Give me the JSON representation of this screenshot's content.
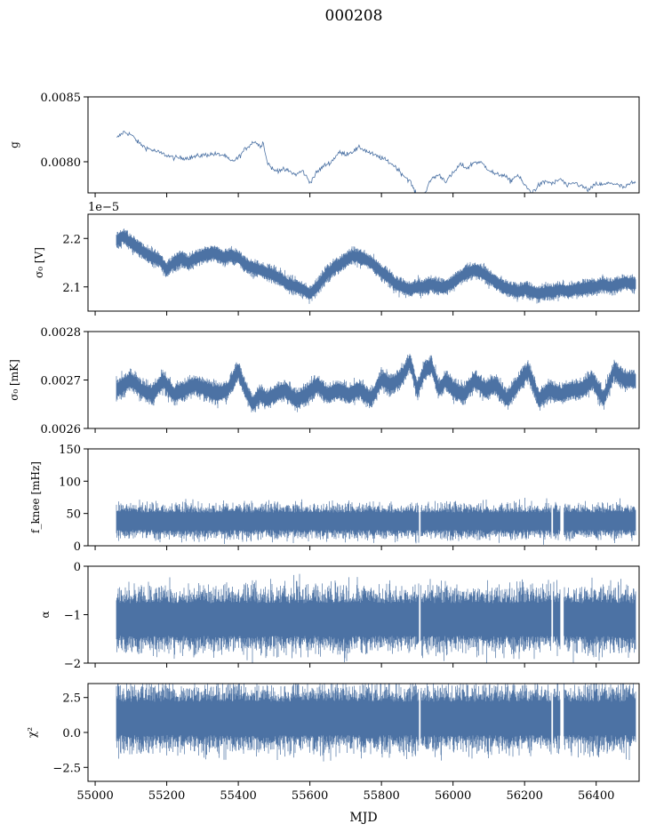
{
  "figure": {
    "title": "000208",
    "xlabel": "MJD",
    "x_tick_labels": [
      "55000",
      "55200",
      "55400",
      "55600",
      "55800",
      "56000",
      "56200",
      "56400"
    ],
    "series_color": "#4c72a4"
  },
  "chart_data": [
    {
      "type": "line",
      "title": "000208",
      "ylabel": "g",
      "xlabel": "",
      "xlim": [
        54980,
        56520
      ],
      "ylim": [
        0.00776,
        0.0085
      ],
      "yticks": [
        0.008,
        0.0085
      ],
      "ytick_labels": [
        "0.0080",
        "0.0085"
      ],
      "offset_text": "",
      "x_range": [
        55060,
        56510
      ],
      "series": [
        {
          "x": [
            55060,
            55080,
            55100,
            55120,
            55140,
            55180,
            55220,
            55260,
            55300,
            55330,
            55360,
            55380,
            55400,
            55420,
            55445,
            55460,
            55470,
            55480,
            55500,
            55520,
            55540,
            55560,
            55580,
            55600,
            55620,
            55640,
            55660,
            55680,
            55700,
            55720,
            55740,
            55760,
            55780,
            55800,
            55820,
            55840,
            55860,
            55880,
            55900,
            55920,
            55940,
            55960,
            55980,
            56000,
            56020,
            56040,
            56060,
            56080,
            56100,
            56120,
            56140,
            56160,
            56180,
            56200,
            56220,
            56240,
            56260,
            56280,
            56300,
            56320,
            56340,
            56360,
            56380,
            56400,
            56420,
            56440,
            56460,
            56480,
            56500,
            56510
          ],
          "y": [
            0.00818,
            0.00823,
            0.00821,
            0.00815,
            0.00811,
            0.00807,
            0.00803,
            0.00803,
            0.00805,
            0.00806,
            0.00805,
            0.008,
            0.00803,
            0.0081,
            0.00816,
            0.00812,
            0.00815,
            0.008,
            0.00793,
            0.00794,
            0.00793,
            0.0079,
            0.00793,
            0.00784,
            0.00792,
            0.00797,
            0.008,
            0.00807,
            0.00806,
            0.00808,
            0.00811,
            0.00808,
            0.00805,
            0.00803,
            0.008,
            0.00796,
            0.0079,
            0.00785,
            0.00773,
            0.00775,
            0.00787,
            0.0079,
            0.00785,
            0.00791,
            0.00798,
            0.00795,
            0.008,
            0.00799,
            0.00794,
            0.0079,
            0.0079,
            0.00785,
            0.0079,
            0.00782,
            0.00776,
            0.00782,
            0.00785,
            0.00783,
            0.00787,
            0.00781,
            0.00784,
            0.00781,
            0.00778,
            0.00783,
            0.00782,
            0.00784,
            0.00782,
            0.0078,
            0.00784,
            0.00783
          ]
        }
      ],
      "series_style": "thin"
    },
    {
      "type": "line",
      "ylabel": "σ₀ [V]",
      "xlabel": "",
      "xlim": [
        54980,
        56520
      ],
      "ylim": [
        2.05,
        2.25
      ],
      "yticks": [
        2.1,
        2.2
      ],
      "ytick_labels": [
        "2.1",
        "2.2"
      ],
      "offset_text": "1e−5",
      "x_range": [
        55060,
        56510
      ],
      "series": [
        {
          "x": [
            55060,
            55080,
            55100,
            55120,
            55150,
            55180,
            55200,
            55220,
            55240,
            55260,
            55280,
            55300,
            55330,
            55360,
            55380,
            55400,
            55420,
            55440,
            55460,
            55480,
            55500,
            55520,
            55540,
            55560,
            55580,
            55600,
            55620,
            55640,
            55660,
            55680,
            55700,
            55720,
            55740,
            55760,
            55780,
            55800,
            55820,
            55840,
            55860,
            55880,
            55900,
            55920,
            55940,
            55960,
            55980,
            56000,
            56020,
            56040,
            56060,
            56080,
            56100,
            56120,
            56140,
            56160,
            56180,
            56200,
            56220,
            56240,
            56260,
            56280,
            56300,
            56320,
            56340,
            56360,
            56380,
            56400,
            56420,
            56440,
            56460,
            56480,
            56510
          ],
          "y": [
            2.196,
            2.205,
            2.19,
            2.18,
            2.165,
            2.155,
            2.135,
            2.15,
            2.16,
            2.15,
            2.16,
            2.165,
            2.17,
            2.16,
            2.165,
            2.16,
            2.145,
            2.14,
            2.135,
            2.13,
            2.125,
            2.115,
            2.105,
            2.1,
            2.095,
            2.085,
            2.1,
            2.12,
            2.135,
            2.145,
            2.155,
            2.165,
            2.16,
            2.155,
            2.145,
            2.13,
            2.12,
            2.105,
            2.1,
            2.095,
            2.1,
            2.1,
            2.105,
            2.1,
            2.1,
            2.11,
            2.12,
            2.13,
            2.135,
            2.13,
            2.12,
            2.11,
            2.1,
            2.095,
            2.09,
            2.095,
            2.09,
            2.085,
            2.09,
            2.09,
            2.095,
            2.09,
            2.095,
            2.095,
            2.1,
            2.1,
            2.105,
            2.1,
            2.105,
            2.11,
            2.105
          ],
          "spread": 0.012
        }
      ],
      "series_style": "noisy"
    },
    {
      "type": "line",
      "ylabel": "σ₀ [mK]",
      "xlabel": "",
      "xlim": [
        54980,
        56520
      ],
      "ylim": [
        0.0026,
        0.0028
      ],
      "yticks": [
        0.0026,
        0.0027,
        0.0028
      ],
      "ytick_labels": [
        "0.0026",
        "0.0027",
        "0.0028"
      ],
      "offset_text": "",
      "x_range": [
        55060,
        56510
      ],
      "series": [
        {
          "x": [
            55060,
            55080,
            55100,
            55130,
            55160,
            55190,
            55220,
            55250,
            55280,
            55310,
            55340,
            55370,
            55400,
            55420,
            55440,
            55460,
            55480,
            55500,
            55530,
            55560,
            55590,
            55620,
            55650,
            55680,
            55710,
            55740,
            55770,
            55800,
            55830,
            55860,
            55880,
            55900,
            55920,
            55940,
            55960,
            55980,
            56000,
            56030,
            56060,
            56090,
            56120,
            56150,
            56180,
            56210,
            56240,
            56270,
            56300,
            56330,
            56360,
            56390,
            56420,
            56450,
            56480,
            56510
          ],
          "y": [
            0.00268,
            0.00269,
            0.0027,
            0.00268,
            0.00267,
            0.0027,
            0.00267,
            0.00268,
            0.00269,
            0.00268,
            0.00267,
            0.00268,
            0.00272,
            0.00268,
            0.00265,
            0.00267,
            0.00266,
            0.00267,
            0.00268,
            0.00266,
            0.00267,
            0.00269,
            0.00267,
            0.00268,
            0.00267,
            0.00268,
            0.00266,
            0.0027,
            0.00269,
            0.00271,
            0.00274,
            0.00268,
            0.00272,
            0.00273,
            0.00268,
            0.0027,
            0.00268,
            0.00267,
            0.0027,
            0.00268,
            0.00269,
            0.00266,
            0.00269,
            0.00272,
            0.00266,
            0.00268,
            0.00267,
            0.00268,
            0.00268,
            0.0027,
            0.00266,
            0.00272,
            0.0027,
            0.0027
          ],
          "spread": 1.5e-05
        }
      ],
      "series_style": "noisy"
    },
    {
      "type": "line",
      "ylabel": "f_knee [mHz]",
      "xlabel": "",
      "xlim": [
        54980,
        56520
      ],
      "ylim": [
        0,
        150
      ],
      "yticks": [
        0,
        50,
        100,
        150
      ],
      "ytick_labels": [
        "0",
        "50",
        "100",
        "150"
      ],
      "offset_text": "",
      "x_range": [
        55060,
        56510
      ],
      "series": [
        {
          "x": [
            55060,
            56510
          ],
          "y": [
            38,
            38
          ],
          "spread": 18
        }
      ],
      "gaps": [
        [
          55905,
          55910
        ],
        [
          56275,
          56280
        ],
        [
          56300,
          56310
        ]
      ],
      "series_style": "noisy"
    },
    {
      "type": "line",
      "ylabel": "α",
      "xlabel": "",
      "xlim": [
        54980,
        56520
      ],
      "ylim": [
        -2,
        0
      ],
      "yticks": [
        -2,
        -1,
        0
      ],
      "ytick_labels": [
        "−2",
        "−1",
        "0"
      ],
      "offset_text": "",
      "x_range": [
        55060,
        56510
      ],
      "series": [
        {
          "x": [
            55060,
            56510
          ],
          "y": [
            -1.1,
            -1.1
          ],
          "spread": 0.45
        }
      ],
      "gaps": [
        [
          55905,
          55910
        ],
        [
          56275,
          56280
        ],
        [
          56300,
          56310
        ]
      ],
      "series_style": "noisy"
    },
    {
      "type": "line",
      "ylabel": "χ²",
      "xlabel": "MJD",
      "xlim": [
        54980,
        56520
      ],
      "ylim": [
        -3.5,
        3.5
      ],
      "yticks": [
        -2.5,
        0.0,
        2.5
      ],
      "ytick_labels": [
        "−2.5",
        "0.0",
        "2.5"
      ],
      "offset_text": "",
      "x_range": [
        55060,
        56510
      ],
      "series": [
        {
          "x": [
            55060,
            56510
          ],
          "y": [
            1.0,
            1.0
          ],
          "spread": 1.6
        }
      ],
      "gaps": [
        [
          55905,
          55910
        ],
        [
          56275,
          56280
        ],
        [
          56300,
          56310
        ]
      ],
      "series_style": "noisy"
    }
  ]
}
